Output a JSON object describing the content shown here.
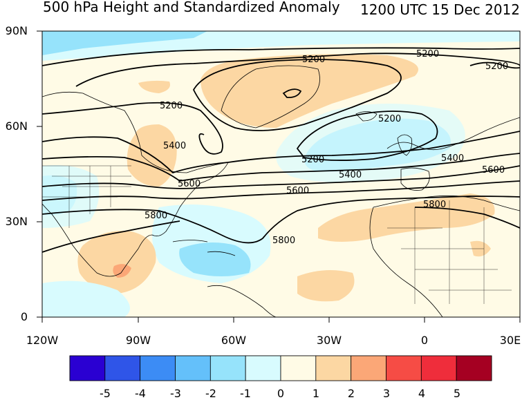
{
  "header": {
    "title": "500 hPa Height and Standardized Anomaly",
    "valid_time": "1200 UTC 15 Dec 2012"
  },
  "axes": {
    "lat_labels": [
      "90N",
      "60N",
      "30N",
      "0"
    ],
    "lon_labels": [
      "120W",
      "90W",
      "60W",
      "30W",
      "0",
      "30E"
    ]
  },
  "contour_labels": [
    "5200",
    "5200",
    "5200",
    "5200",
    "5200",
    "5400",
    "5400",
    "5400",
    "5200",
    "5600",
    "5600",
    "5600",
    "5800",
    "5800",
    "5800"
  ],
  "colorbar": {
    "labels": [
      "-5",
      "-4",
      "-3",
      "-2",
      "-1",
      "0",
      "1",
      "2",
      "3",
      "4",
      "5"
    ],
    "colors": [
      "#2a00d2",
      "#2f55e8",
      "#3c8cf5",
      "#64c0fa",
      "#96e3fb",
      "#d8fbfe",
      "#fffbe6",
      "#fcd7a3",
      "#fba777",
      "#f64c45",
      "#ef2d3b",
      "#a50022"
    ]
  }
}
